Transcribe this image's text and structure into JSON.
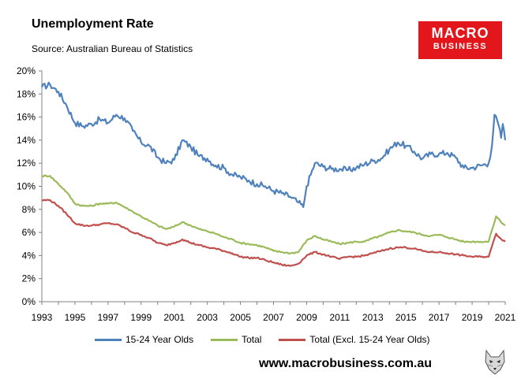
{
  "header": {
    "title": "Unemployment Rate",
    "subtitle": "Source: Australian Bureau of Statistics"
  },
  "logo": {
    "line1": "MACRO",
    "line2": "BUSINESS",
    "color": "#e3161b"
  },
  "footer": {
    "website": "www.macrobusiness.com.au",
    "mascot_icon": "wolf-icon"
  },
  "chart_data": {
    "type": "line",
    "title": "Unemployment Rate",
    "xlabel": "",
    "ylabel": "",
    "xlim": [
      1993,
      2021
    ],
    "ylim": [
      0,
      20
    ],
    "y_ticks": [
      "0%",
      "2%",
      "4%",
      "6%",
      "8%",
      "10%",
      "12%",
      "14%",
      "16%",
      "18%",
      "20%"
    ],
    "x_ticks": [
      "1993",
      "1995",
      "1997",
      "1999",
      "2001",
      "2003",
      "2005",
      "2007",
      "2009",
      "2011",
      "2013",
      "2015",
      "2017",
      "2019",
      "2021"
    ],
    "grid": false,
    "legend_position": "bottom",
    "series": [
      {
        "name": "15-24 Year Olds",
        "color": "#4f81bd",
        "points": [
          [
            1993,
            18.6
          ],
          [
            1993.5,
            18.8
          ],
          [
            1994,
            18.2
          ],
          [
            1994.5,
            17.0
          ],
          [
            1995,
            15.5
          ],
          [
            1995.5,
            15.2
          ],
          [
            1996,
            15.4
          ],
          [
            1996.5,
            15.8
          ],
          [
            1997,
            15.5
          ],
          [
            1997.5,
            16.2
          ],
          [
            1998,
            15.9
          ],
          [
            1998.5,
            14.8
          ],
          [
            1999,
            13.8
          ],
          [
            1999.5,
            13.5
          ],
          [
            2000,
            12.5
          ],
          [
            2000.5,
            12.0
          ],
          [
            2001,
            12.3
          ],
          [
            2001.5,
            14.0
          ],
          [
            2002,
            13.4
          ],
          [
            2002.5,
            12.6
          ],
          [
            2003,
            12.4
          ],
          [
            2003.5,
            11.8
          ],
          [
            2004,
            11.6
          ],
          [
            2004.5,
            11.0
          ],
          [
            2005,
            10.8
          ],
          [
            2005.5,
            10.5
          ],
          [
            2006,
            10.2
          ],
          [
            2006.5,
            10.0
          ],
          [
            2007,
            9.6
          ],
          [
            2007.5,
            9.4
          ],
          [
            2008,
            9.1
          ],
          [
            2008.5,
            8.6
          ],
          [
            2008.8,
            8.2
          ],
          [
            2009,
            10.0
          ],
          [
            2009.5,
            12.0
          ],
          [
            2010,
            11.7
          ],
          [
            2010.5,
            11.5
          ],
          [
            2011,
            11.5
          ],
          [
            2011.5,
            11.4
          ],
          [
            2012,
            11.6
          ],
          [
            2012.5,
            11.9
          ],
          [
            2013,
            12.2
          ],
          [
            2013.5,
            12.4
          ],
          [
            2014,
            13.2
          ],
          [
            2014.5,
            13.8
          ],
          [
            2015,
            13.5
          ],
          [
            2015.5,
            13.0
          ],
          [
            2016,
            12.4
          ],
          [
            2016.5,
            12.8
          ],
          [
            2017,
            12.8
          ],
          [
            2017.5,
            12.9
          ],
          [
            2018,
            12.5
          ],
          [
            2018.5,
            11.6
          ],
          [
            2019,
            11.6
          ],
          [
            2019.5,
            11.8
          ],
          [
            2020,
            12.0
          ],
          [
            2020.2,
            13.5
          ],
          [
            2020.35,
            16.2
          ],
          [
            2020.6,
            15.3
          ],
          [
            2020.75,
            14.2
          ],
          [
            2020.85,
            15.4
          ],
          [
            2021,
            14.0
          ]
        ]
      },
      {
        "name": "Total",
        "color": "#9bbb59",
        "points": [
          [
            1993,
            10.9
          ],
          [
            1993.5,
            10.9
          ],
          [
            1994,
            10.2
          ],
          [
            1994.5,
            9.5
          ],
          [
            1995,
            8.5
          ],
          [
            1995.5,
            8.3
          ],
          [
            1996,
            8.3
          ],
          [
            1996.5,
            8.5
          ],
          [
            1997,
            8.5
          ],
          [
            1997.5,
            8.6
          ],
          [
            1998,
            8.2
          ],
          [
            1998.5,
            7.8
          ],
          [
            1999,
            7.4
          ],
          [
            1999.5,
            7.0
          ],
          [
            2000,
            6.6
          ],
          [
            2000.5,
            6.3
          ],
          [
            2001,
            6.5
          ],
          [
            2001.5,
            6.9
          ],
          [
            2002,
            6.6
          ],
          [
            2002.5,
            6.3
          ],
          [
            2003,
            6.1
          ],
          [
            2003.5,
            5.9
          ],
          [
            2004,
            5.6
          ],
          [
            2004.5,
            5.4
          ],
          [
            2005,
            5.1
          ],
          [
            2005.5,
            5.0
          ],
          [
            2006,
            4.9
          ],
          [
            2006.5,
            4.7
          ],
          [
            2007,
            4.4
          ],
          [
            2007.5,
            4.3
          ],
          [
            2008,
            4.2
          ],
          [
            2008.5,
            4.3
          ],
          [
            2009,
            5.3
          ],
          [
            2009.5,
            5.7
          ],
          [
            2010,
            5.4
          ],
          [
            2010.5,
            5.2
          ],
          [
            2011,
            5.0
          ],
          [
            2011.5,
            5.1
          ],
          [
            2012,
            5.2
          ],
          [
            2012.5,
            5.2
          ],
          [
            2013,
            5.5
          ],
          [
            2013.5,
            5.7
          ],
          [
            2014,
            6.0
          ],
          [
            2014.5,
            6.2
          ],
          [
            2015,
            6.1
          ],
          [
            2015.5,
            6.0
          ],
          [
            2016,
            5.8
          ],
          [
            2016.5,
            5.7
          ],
          [
            2017,
            5.8
          ],
          [
            2017.5,
            5.6
          ],
          [
            2018,
            5.4
          ],
          [
            2018.5,
            5.2
          ],
          [
            2019,
            5.2
          ],
          [
            2019.5,
            5.2
          ],
          [
            2020,
            5.2
          ],
          [
            2020.2,
            6.2
          ],
          [
            2020.45,
            7.4
          ],
          [
            2020.7,
            7.0
          ],
          [
            2021,
            6.6
          ]
        ]
      },
      {
        "name": "Total (Excl. 15-24 Year Olds)",
        "color": "#c0504d",
        "points": [
          [
            1993,
            8.8
          ],
          [
            1993.5,
            8.8
          ],
          [
            1994,
            8.3
          ],
          [
            1994.5,
            7.6
          ],
          [
            1995,
            6.8
          ],
          [
            1995.5,
            6.6
          ],
          [
            1996,
            6.6
          ],
          [
            1996.5,
            6.7
          ],
          [
            1997,
            6.8
          ],
          [
            1997.5,
            6.7
          ],
          [
            1998,
            6.4
          ],
          [
            1998.5,
            6.0
          ],
          [
            1999,
            5.8
          ],
          [
            1999.5,
            5.5
          ],
          [
            2000,
            5.1
          ],
          [
            2000.5,
            4.9
          ],
          [
            2001,
            5.1
          ],
          [
            2001.5,
            5.4
          ],
          [
            2002,
            5.1
          ],
          [
            2002.5,
            4.9
          ],
          [
            2003,
            4.7
          ],
          [
            2003.5,
            4.6
          ],
          [
            2004,
            4.4
          ],
          [
            2004.5,
            4.2
          ],
          [
            2005,
            3.9
          ],
          [
            2005.5,
            3.8
          ],
          [
            2006,
            3.8
          ],
          [
            2006.5,
            3.6
          ],
          [
            2007,
            3.4
          ],
          [
            2007.5,
            3.2
          ],
          [
            2008,
            3.1
          ],
          [
            2008.5,
            3.3
          ],
          [
            2009,
            4.0
          ],
          [
            2009.5,
            4.3
          ],
          [
            2010,
            4.1
          ],
          [
            2010.5,
            3.9
          ],
          [
            2011,
            3.7
          ],
          [
            2011.5,
            3.9
          ],
          [
            2012,
            3.9
          ],
          [
            2012.5,
            4.0
          ],
          [
            2013,
            4.2
          ],
          [
            2013.5,
            4.4
          ],
          [
            2014,
            4.6
          ],
          [
            2014.5,
            4.7
          ],
          [
            2015,
            4.7
          ],
          [
            2015.5,
            4.6
          ],
          [
            2016,
            4.4
          ],
          [
            2016.5,
            4.3
          ],
          [
            2017,
            4.3
          ],
          [
            2017.5,
            4.2
          ],
          [
            2018,
            4.1
          ],
          [
            2018.5,
            4.0
          ],
          [
            2019,
            3.9
          ],
          [
            2019.5,
            3.9
          ],
          [
            2020,
            3.9
          ],
          [
            2020.2,
            4.8
          ],
          [
            2020.45,
            5.9
          ],
          [
            2020.7,
            5.5
          ],
          [
            2021,
            5.2
          ]
        ]
      }
    ]
  }
}
